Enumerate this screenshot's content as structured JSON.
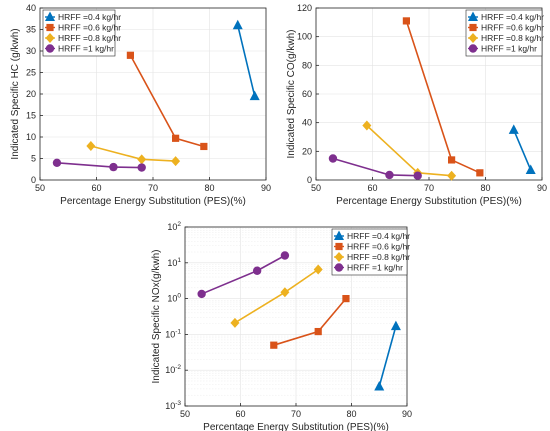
{
  "chart_data": [
    {
      "type": "line",
      "xlabel": "Percentage Energy Substitution (PES)(%)",
      "ylabel": "Indicated Specific HC (g/kwh)",
      "xlim": [
        50,
        90
      ],
      "ylim": [
        0,
        40
      ],
      "yscale": "linear",
      "xticks": [
        "50",
        "60",
        "70",
        "80",
        "90"
      ],
      "yticks": [
        "0",
        "5",
        "10",
        "15",
        "20",
        "25",
        "30",
        "35",
        "40"
      ],
      "grid": true,
      "legend_position": "top-left",
      "series": [
        {
          "name": "HRFF =0.4 kg/hr",
          "color": "#0072BD",
          "marker": "triangle",
          "x": [
            85,
            88
          ],
          "y": [
            36,
            19.5
          ]
        },
        {
          "name": "HRFF =0.6 kg/hr",
          "color": "#D95319",
          "marker": "square",
          "x": [
            66,
            74,
            79
          ],
          "y": [
            29,
            9.7,
            7.8
          ]
        },
        {
          "name": "HRFF =0.8 kg/hr",
          "color": "#EDB120",
          "marker": "diamond",
          "x": [
            59,
            68,
            74
          ],
          "y": [
            7.9,
            4.8,
            4.4
          ]
        },
        {
          "name": "HRFF =1 kg/hr",
          "color": "#7E2F8E",
          "marker": "circle",
          "x": [
            53,
            63,
            68
          ],
          "y": [
            4,
            3,
            2.9
          ]
        }
      ]
    },
    {
      "type": "line",
      "xlabel": "Percentage Energy Substitution (PES)(%)",
      "ylabel": "Indicated Specific CO(g/kwh)",
      "xlim": [
        50,
        90
      ],
      "ylim": [
        0,
        120
      ],
      "yscale": "linear",
      "xticks": [
        "50",
        "60",
        "70",
        "80",
        "90"
      ],
      "yticks": [
        "0",
        "20",
        "40",
        "60",
        "80",
        "100",
        "120"
      ],
      "grid": true,
      "legend_position": "top-right",
      "series": [
        {
          "name": "HRFF =0.4 kg/hr",
          "color": "#0072BD",
          "marker": "triangle",
          "x": [
            85,
            88
          ],
          "y": [
            35,
            7
          ]
        },
        {
          "name": "HRFF =0.6 kg/hr",
          "color": "#D95319",
          "marker": "square",
          "x": [
            66,
            74,
            79
          ],
          "y": [
            111,
            14,
            5
          ]
        },
        {
          "name": "HRFF =0.8 kg/hr",
          "color": "#EDB120",
          "marker": "diamond",
          "x": [
            59,
            68,
            74
          ],
          "y": [
            38,
            5,
            3
          ]
        },
        {
          "name": "HRFF =1 kg/hr",
          "color": "#7E2F8E",
          "marker": "circle",
          "x": [
            53,
            63,
            68
          ],
          "y": [
            15,
            3.5,
            3
          ]
        }
      ]
    },
    {
      "type": "line",
      "xlabel": "Percentage Energy Substitution (PES)(%)",
      "ylabel": "Indicated Specific NOx(g/kwh)",
      "xlim": [
        50,
        90
      ],
      "ylim": [
        0.001,
        100
      ],
      "yscale": "log",
      "xticks": [
        "50",
        "60",
        "70",
        "80",
        "90"
      ],
      "yticks": [
        {
          "base": "10",
          "exp": "2"
        },
        {
          "base": "10",
          "exp": "1"
        },
        {
          "base": "10",
          "exp": "0"
        },
        {
          "base": "10",
          "exp": "-1"
        },
        {
          "base": "10",
          "exp": "-2"
        },
        {
          "base": "10",
          "exp": "-3"
        }
      ],
      "grid": true,
      "legend_position": "top-right",
      "series": [
        {
          "name": "HRFF =0.4 kg/hr",
          "color": "#0072BD",
          "marker": "triangle",
          "x": [
            85,
            88
          ],
          "y": [
            0.0035,
            0.17
          ]
        },
        {
          "name": "HRFF =0.6 kg/hr",
          "color": "#D95319",
          "marker": "square",
          "x": [
            66,
            74,
            79
          ],
          "y": [
            0.05,
            0.12,
            1
          ]
        },
        {
          "name": "HRFF =0.8 kg/hr",
          "color": "#EDB120",
          "marker": "diamond",
          "x": [
            59,
            68,
            74
          ],
          "y": [
            0.21,
            1.5,
            6.5
          ]
        },
        {
          "name": "HRFF =1 kg/hr",
          "color": "#7E2F8E",
          "marker": "circle",
          "x": [
            53,
            63,
            68
          ],
          "y": [
            1.35,
            6,
            16
          ]
        }
      ]
    }
  ]
}
